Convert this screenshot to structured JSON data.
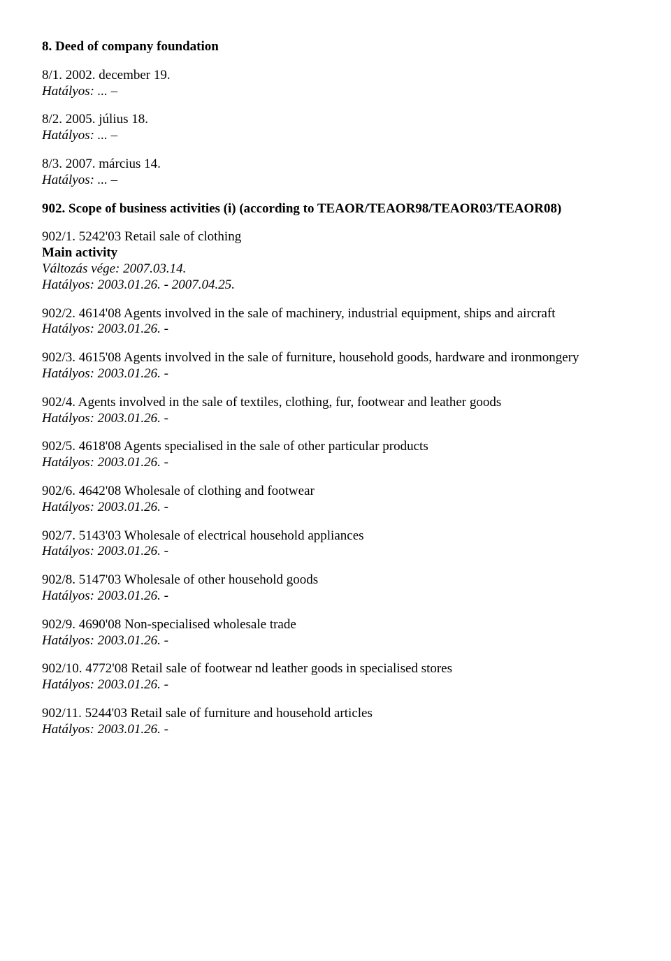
{
  "section8": {
    "heading": "8. Deed of company foundation",
    "items": [
      {
        "code": "8/1. 2002. december 19.",
        "hatalyos": "Hatályos: ... –"
      },
      {
        "code": "8/2. 2005. július 18.",
        "hatalyos": "Hatályos: ... –"
      },
      {
        "code": "8/3. 2007. március 14.",
        "hatalyos": "Hatályos: ... –"
      }
    ]
  },
  "section902": {
    "heading": "902. Scope of business activities (i) (according to TEAOR/TEAOR98/TEAOR03/TEAOR08)",
    "main": {
      "code": "902/1. 5242'03 Retail sale of clothing",
      "mainActivity": "Main activity",
      "valtozas": "Változás vége: 2007.03.14.",
      "hatalyos": "Hatályos: 2003.01.26. - 2007.04.25."
    },
    "items": [
      {
        "code": "902/2. 4614'08 Agents involved in the sale of machinery, industrial equipment, ships and aircraft",
        "hatalyos": "Hatályos: 2003.01.26. -"
      },
      {
        "code": "902/3. 4615'08 Agents involved in the sale of furniture, household goods, hardware and ironmongery",
        "hatalyos": "Hatályos: 2003.01.26. -"
      },
      {
        "code": "902/4. Agents involved in the sale of textiles, clothing, fur, footwear and leather goods",
        "hatalyos": "Hatályos: 2003.01.26. -"
      },
      {
        "code": "902/5. 4618'08 Agents specialised in the sale of other particular products",
        "hatalyos": "Hatályos: 2003.01.26. -"
      },
      {
        "code": "902/6. 4642'08 Wholesale of clothing and footwear",
        "hatalyos": "Hatályos: 2003.01.26. -"
      },
      {
        "code": "902/7. 5143'03 Wholesale of electrical household appliances",
        "hatalyos": "Hatályos: 2003.01.26. -"
      },
      {
        "code": "902/8. 5147'03 Wholesale of other household goods",
        "hatalyos": "Hatályos: 2003.01.26. -"
      },
      {
        "code": "902/9. 4690'08 Non-specialised wholesale trade",
        "hatalyos": "Hatályos: 2003.01.26. -"
      },
      {
        "code": "902/10. 4772'08 Retail sale of footwear nd leather goods in specialised stores",
        "hatalyos": "Hatályos: 2003.01.26. -"
      },
      {
        "code": "902/11. 5244'03 Retail sale of furniture and household articles",
        "hatalyos": "Hatályos: 2003.01.26. -"
      }
    ]
  }
}
